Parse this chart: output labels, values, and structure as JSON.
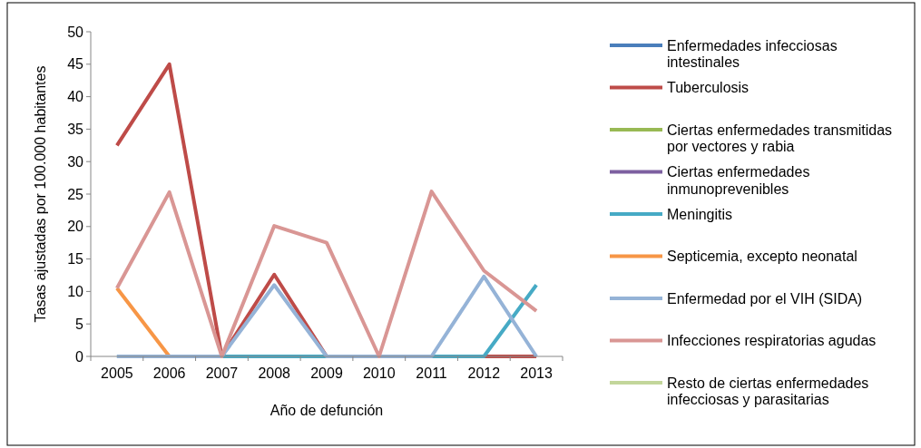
{
  "chart_data": {
    "type": "line",
    "xlabel": "Año de defunción",
    "ylabel": "Tasas ajustadas por 100.000 habitantes",
    "categories": [
      "2005",
      "2006",
      "2007",
      "2008",
      "2009",
      "2010",
      "2011",
      "2012",
      "2013"
    ],
    "ylim": [
      0,
      50
    ],
    "yticks": [
      0,
      5,
      10,
      15,
      20,
      25,
      30,
      35,
      40,
      45,
      50
    ],
    "grid": false,
    "legend": "right",
    "marker": "none",
    "line_style": "solid",
    "series": [
      {
        "name": "Enfermedades infecciosas intestinales",
        "color": "#4a7ebb",
        "values": [
          null,
          null,
          null,
          null,
          null,
          null,
          null,
          null,
          null
        ]
      },
      {
        "name": "Tuberculosis",
        "color": "#be4b48",
        "values": [
          32.5,
          45,
          0,
          12.6,
          0,
          0,
          0,
          0,
          0
        ]
      },
      {
        "name": "Ciertas enfermedades transmitidas por vectores y rabia",
        "color": "#98b954",
        "values": [
          null,
          null,
          null,
          null,
          null,
          null,
          null,
          null,
          null
        ]
      },
      {
        "name": "Ciertas enfermedades inmunoprevenibles",
        "color": "#7d60a0",
        "values": [
          null,
          null,
          null,
          null,
          null,
          null,
          null,
          null,
          null
        ]
      },
      {
        "name": "Meningitis",
        "color": "#46aac5",
        "values": [
          0,
          0,
          0,
          0,
          0,
          0,
          0,
          0,
          11
        ]
      },
      {
        "name": "Septicemia, excepto neonatal",
        "color": "#f79646",
        "values": [
          10.5,
          0,
          null,
          null,
          null,
          null,
          null,
          null,
          null
        ]
      },
      {
        "name": "Enfermedad por el VIH (SIDA)",
        "color": "#95b3d7",
        "values": [
          0,
          0,
          0,
          11,
          0,
          0,
          0,
          12.3,
          0
        ]
      },
      {
        "name": "Infecciones respiratorias agudas",
        "color": "#d99694",
        "values": [
          10.5,
          25.3,
          0,
          20.1,
          17.5,
          0,
          25.4,
          13.2,
          7
        ]
      },
      {
        "name": "Resto de ciertas enfermedades infecciosas y parasitarias",
        "color": "#c3d69b",
        "values": [
          null,
          null,
          null,
          null,
          null,
          null,
          null,
          null,
          null
        ]
      }
    ]
  }
}
